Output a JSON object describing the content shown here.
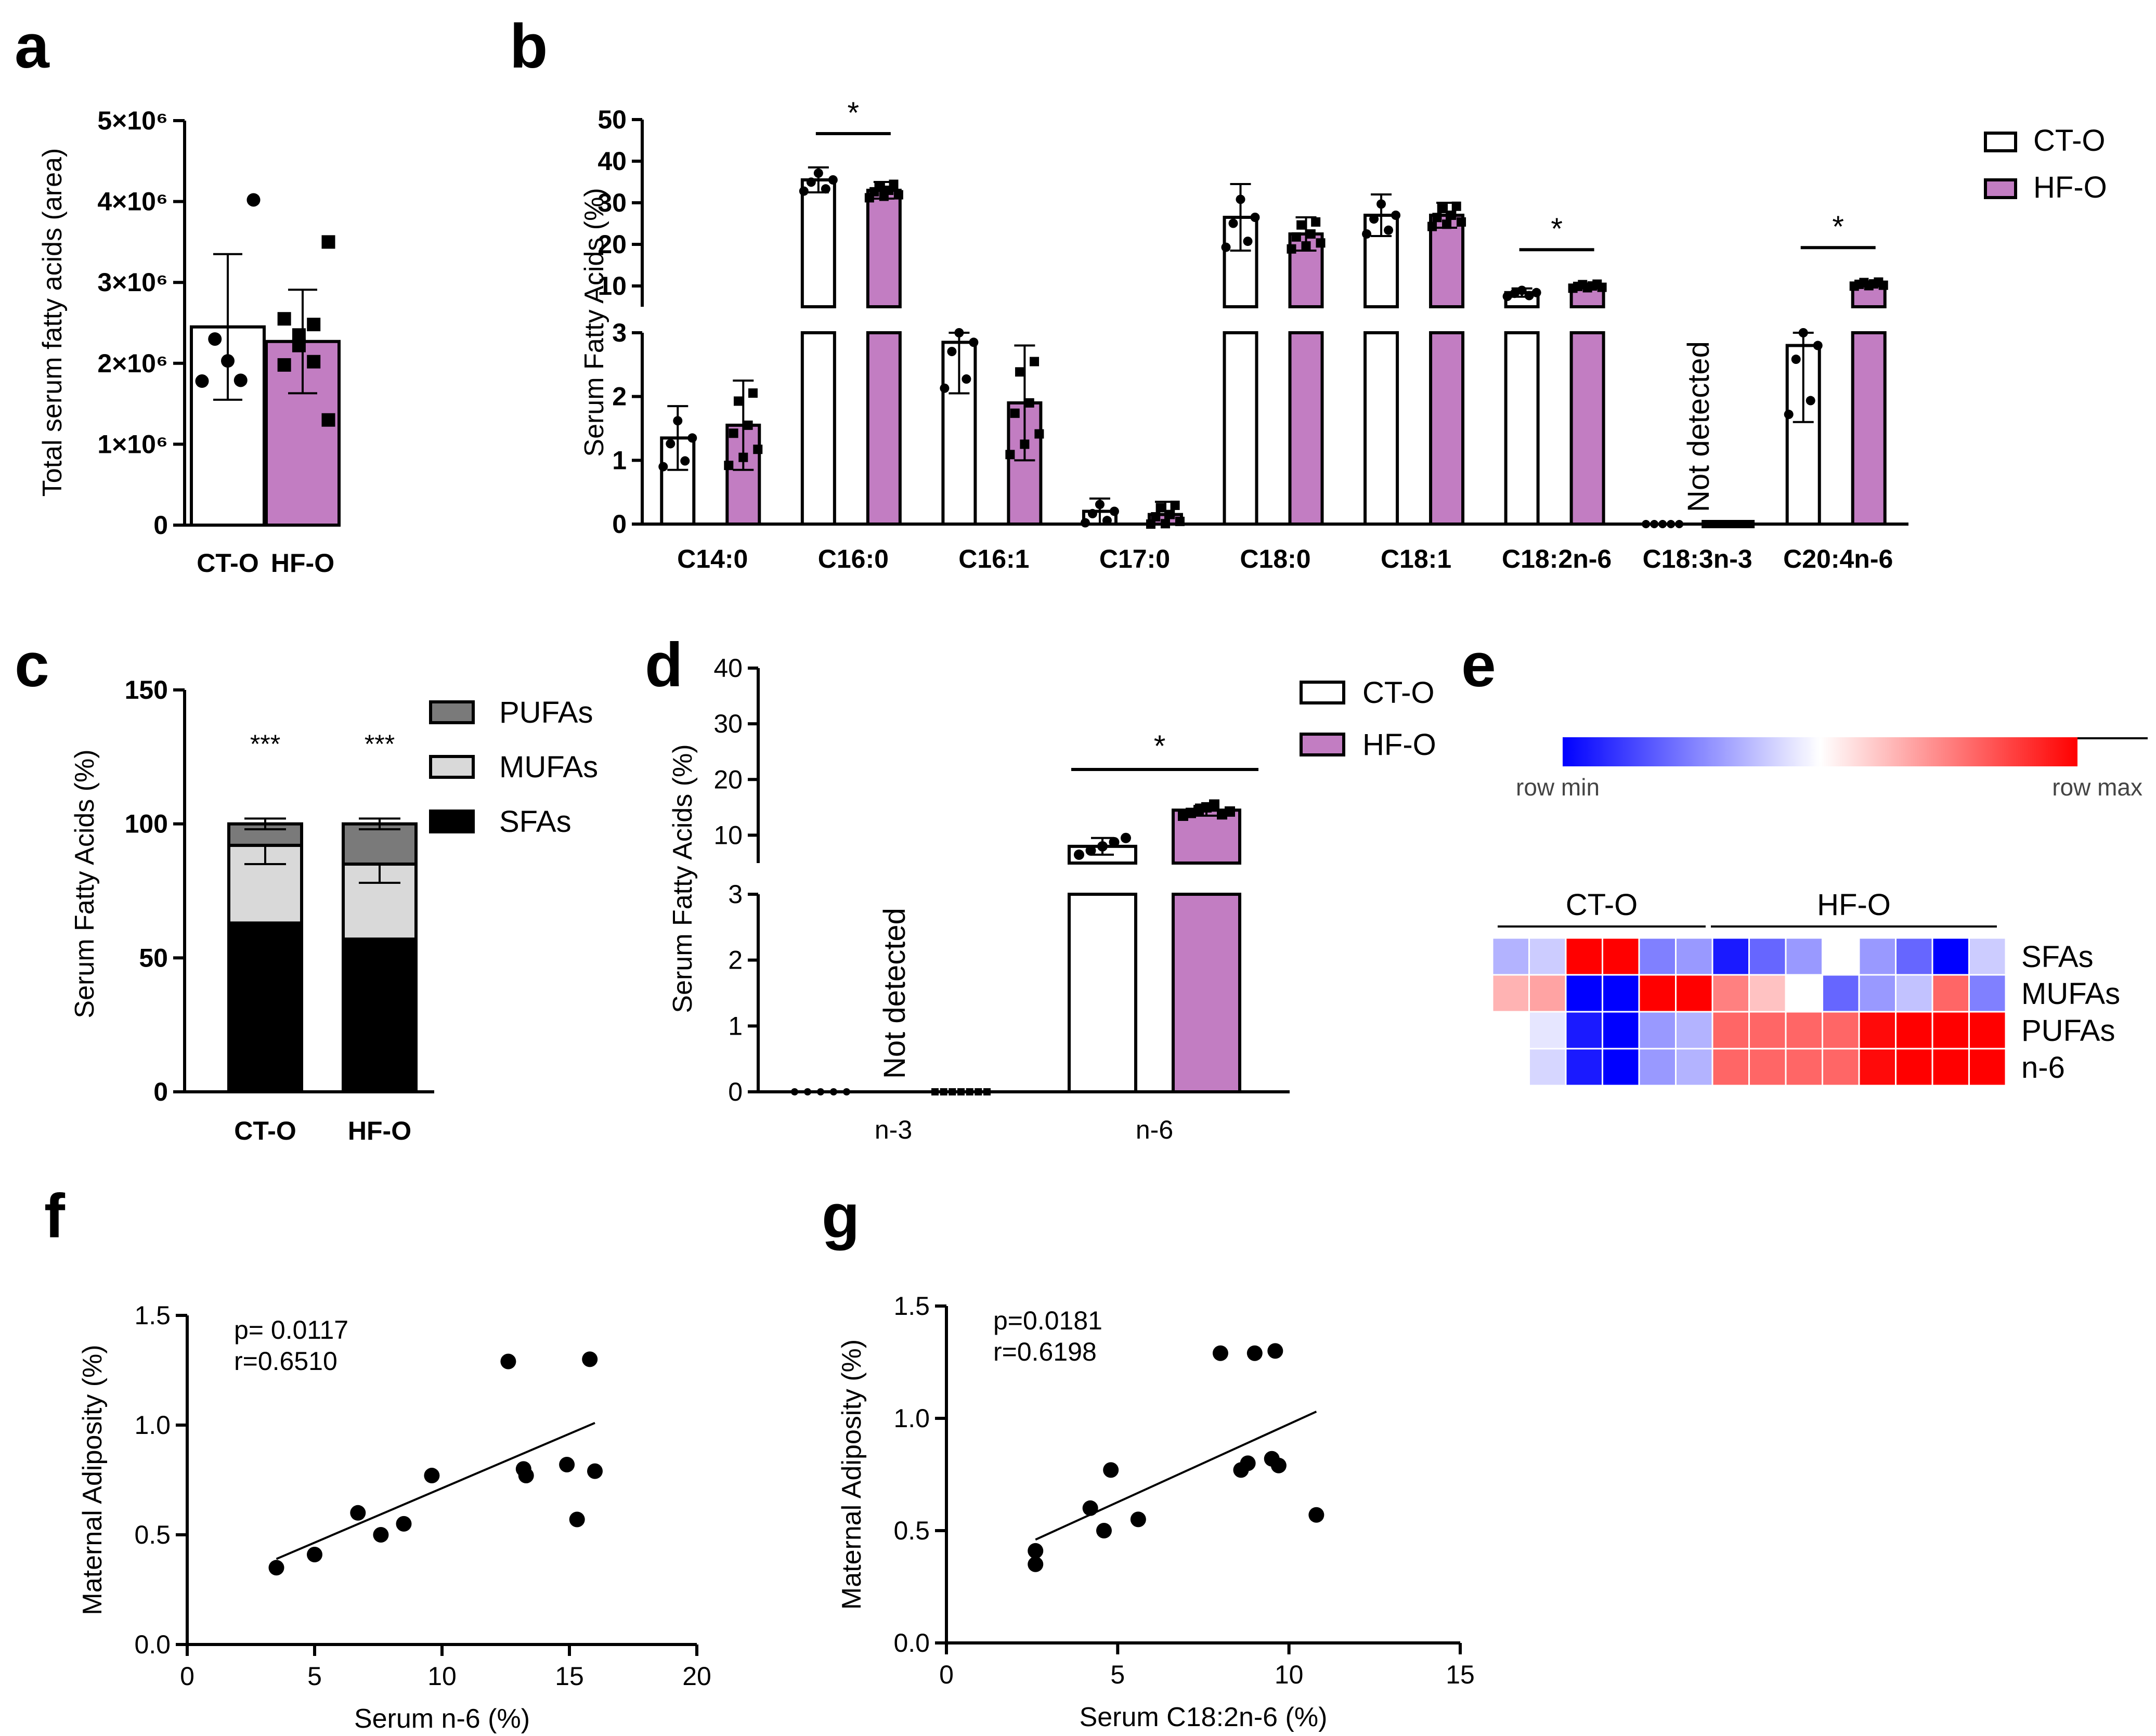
{
  "panel_labels": [
    "a",
    "b",
    "c",
    "d",
    "e",
    "f",
    "g"
  ],
  "colors": {
    "ct": "#ffffff",
    "hf": "#c27dc2",
    "sfa": "#000000",
    "mufa": "#d9d9d9",
    "pufa": "#7a7a7a",
    "outline": "#000000"
  },
  "chart_data": [
    {
      "id": "a",
      "type": "bar",
      "ylabel": "Total serum fatty acids (area)",
      "categories": [
        "CT-O",
        "HF-O"
      ],
      "means": [
        2450000,
        2270000
      ],
      "errors": [
        900000,
        640000
      ],
      "points": [
        [
          4020000,
          2300000,
          2030000,
          1790000,
          1780000
        ],
        [
          3500000,
          2550000,
          2480000,
          2350000,
          2220000,
          2020000,
          1980000,
          1300000
        ]
      ],
      "ylim": [
        0,
        5000000
      ],
      "yticks": [
        {
          "v": 0,
          "label": "0"
        },
        {
          "v": 1000000,
          "label": "1×10⁶"
        },
        {
          "v": 2000000,
          "label": "2×10⁶"
        },
        {
          "v": 3000000,
          "label": "3×10⁶"
        },
        {
          "v": 4000000,
          "label": "4×10⁶"
        },
        {
          "v": 5000000,
          "label": "5×10⁶"
        }
      ]
    },
    {
      "id": "b",
      "type": "bar",
      "ylabel": "Serum Fatty Acids (%)",
      "legend": [
        "CT-O",
        "HF-O"
      ],
      "categories": [
        "C14:0",
        "C16:0",
        "C16:1",
        "C17:0",
        "C18:0",
        "C18:1",
        "C18:2n-6",
        "C18:3n-3",
        "C20:4n-6"
      ],
      "axis_break": {
        "lower": [
          0,
          3
        ],
        "upper": [
          5,
          50
        ]
      },
      "lower_ticks": [
        "0",
        "1",
        "2",
        "3"
      ],
      "upper_ticks": [
        "10",
        "20",
        "30",
        "40",
        "50"
      ],
      "series": [
        {
          "name": "CT-O",
          "values": [
            1.35,
            35.5,
            2.85,
            0.2,
            26.5,
            27.0,
            8.4,
            0.0,
            2.8
          ],
          "errors": [
            0.5,
            3.0,
            0.8,
            0.2,
            8.0,
            5.0,
            1.0,
            0.0,
            1.2
          ]
        },
        {
          "name": "HF-O",
          "values": [
            1.55,
            33.0,
            1.9,
            0.15,
            22.5,
            27.0,
            10.0,
            0.0,
            10.5
          ],
          "errors": [
            0.7,
            2.0,
            0.9,
            0.2,
            4.0,
            3.0,
            0.6,
            0.0,
            0.6
          ]
        }
      ],
      "significance": [
        {
          "category": "C16:0",
          "label": "*"
        },
        {
          "category": "C18:2n-6",
          "label": "*"
        },
        {
          "category": "C20:4n-6",
          "label": "*"
        }
      ],
      "annotation": "Not detected"
    },
    {
      "id": "c",
      "type": "bar",
      "ylabel": "Serum Fatty Acids (%)",
      "categories": [
        "CT-O",
        "HF-O"
      ],
      "stacks": [
        {
          "name": "SFAs",
          "values": [
            63,
            57
          ]
        },
        {
          "name": "MUFAs",
          "values": [
            29,
            28
          ]
        },
        {
          "name": "PUFAs",
          "values": [
            8,
            15
          ]
        }
      ],
      "ylim": [
        0,
        150
      ],
      "yticks": [
        "0",
        "50",
        "100",
        "150"
      ],
      "significance": [
        "***",
        "***"
      ]
    },
    {
      "id": "d",
      "type": "bar",
      "ylabel": "Serum Fatty Acids (%)",
      "legend": [
        "CT-O",
        "HF-O"
      ],
      "categories": [
        "n-3",
        "n-6"
      ],
      "series": [
        {
          "name": "CT-O",
          "values": [
            0,
            8.0
          ],
          "errors": [
            0,
            1.5
          ]
        },
        {
          "name": "HF-O",
          "values": [
            0,
            14.5
          ],
          "errors": [
            0,
            1.0
          ]
        }
      ],
      "lower_ticks": [
        "0",
        "1",
        "2",
        "3"
      ],
      "upper_ticks": [
        "10",
        "20",
        "30",
        "40"
      ],
      "significance": [
        {
          "category": "n-6",
          "label": "*"
        }
      ],
      "annotation": "Not detected"
    },
    {
      "id": "e",
      "type": "heatmap",
      "scale_labels": [
        "row min",
        "row max"
      ],
      "groups": [
        "CT-O",
        "HF-O"
      ],
      "rows": [
        "SFAs",
        "MUFAs",
        "PUFAs",
        "n-6"
      ],
      "values": [
        [
          0.35,
          0.4,
          1.0,
          1.0,
          0.25,
          0.3,
          0.05,
          0.2,
          0.3,
          0.5,
          0.3,
          0.2,
          0.0,
          0.4
        ],
        [
          0.65,
          0.68,
          0.0,
          0.0,
          1.0,
          1.0,
          0.75,
          0.62,
          0.5,
          0.2,
          0.3,
          0.38,
          0.8,
          0.25
        ],
        [
          0.5,
          0.45,
          0.05,
          0.0,
          0.3,
          0.35,
          0.8,
          0.8,
          0.8,
          0.8,
          0.98,
          1.0,
          1.0,
          1.0
        ],
        [
          0.5,
          0.42,
          0.05,
          0.0,
          0.3,
          0.35,
          0.8,
          0.8,
          0.8,
          0.8,
          0.98,
          1.0,
          1.0,
          1.0
        ]
      ]
    },
    {
      "id": "f",
      "type": "scatter",
      "xlabel": "Serum n-6 (%)",
      "ylabel": "Maternal Adiposity (%)",
      "xlim": [
        0,
        20
      ],
      "ylim": [
        0,
        1.5
      ],
      "xticks": [
        "0",
        "5",
        "10",
        "15",
        "20"
      ],
      "yticks": [
        "0.0",
        "0.5",
        "1.0",
        "1.5"
      ],
      "points": [
        [
          3.5,
          0.35
        ],
        [
          5.0,
          0.41
        ],
        [
          6.7,
          0.6
        ],
        [
          7.6,
          0.5
        ],
        [
          8.5,
          0.55
        ],
        [
          9.6,
          0.77
        ],
        [
          12.6,
          1.29
        ],
        [
          13.2,
          0.8
        ],
        [
          13.3,
          0.77
        ],
        [
          14.9,
          0.82
        ],
        [
          15.3,
          0.57
        ],
        [
          15.8,
          1.3
        ],
        [
          16.0,
          0.79
        ]
      ],
      "fit": [
        [
          3.5,
          0.39
        ],
        [
          16.0,
          1.01
        ]
      ],
      "stats": [
        "p= 0.0117",
        "r=0.6510"
      ]
    },
    {
      "id": "g",
      "type": "scatter",
      "xlabel": "Serum C18:2n-6 (%)",
      "ylabel": "Maternal Adiposity (%)",
      "xlim": [
        0,
        15
      ],
      "ylim": [
        0,
        1.5
      ],
      "xticks": [
        "0",
        "5",
        "10",
        "15"
      ],
      "yticks": [
        "0.0",
        "0.5",
        "1.0",
        "1.5"
      ],
      "points": [
        [
          2.6,
          0.41
        ],
        [
          2.6,
          0.35
        ],
        [
          4.2,
          0.6
        ],
        [
          4.6,
          0.5
        ],
        [
          4.8,
          0.77
        ],
        [
          5.6,
          0.55
        ],
        [
          8.0,
          1.29
        ],
        [
          8.6,
          0.77
        ],
        [
          8.8,
          0.8
        ],
        [
          9.0,
          1.29
        ],
        [
          9.5,
          0.82
        ],
        [
          9.6,
          1.3
        ],
        [
          9.7,
          0.79
        ],
        [
          10.8,
          0.57
        ]
      ],
      "fit": [
        [
          2.6,
          0.46
        ],
        [
          10.8,
          1.03
        ]
      ],
      "stats": [
        "p=0.0181",
        "r=0.6198"
      ]
    }
  ]
}
